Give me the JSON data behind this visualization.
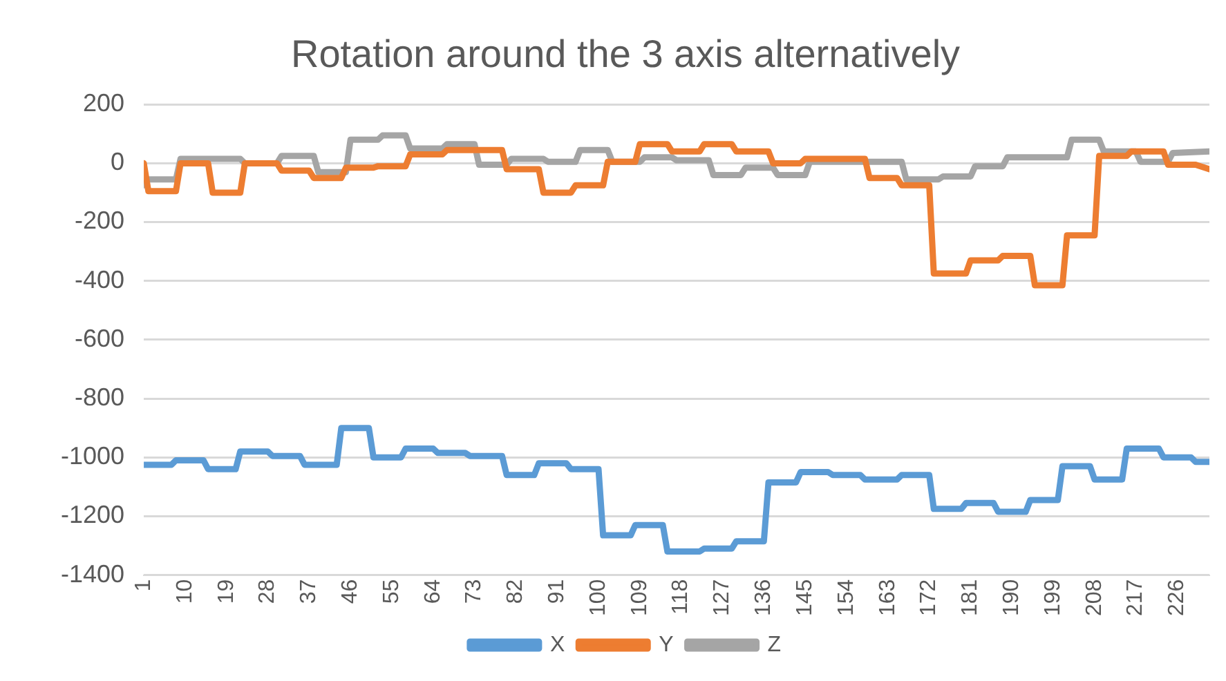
{
  "chart_data": {
    "type": "line",
    "title": "Rotation around the 3 axis alternatively",
    "xlim": [
      1,
      233
    ],
    "xticks": [
      1,
      10,
      19,
      28,
      37,
      46,
      55,
      64,
      73,
      82,
      91,
      100,
      109,
      118,
      127,
      136,
      145,
      154,
      163,
      172,
      181,
      190,
      199,
      208,
      217,
      226
    ],
    "ylim": [
      -1400,
      200
    ],
    "yticks": [
      -1400,
      -1200,
      -1000,
      -800,
      -600,
      -400,
      -200,
      0,
      200
    ],
    "grid": "y",
    "legend": "bottom",
    "marker": "none",
    "line_style": "solid",
    "series": [
      {
        "name": "X",
        "color": "#5b9bd5",
        "x": [
          1,
          7,
          8,
          14,
          15,
          21,
          22,
          28,
          29,
          35,
          36,
          43,
          44,
          50,
          51,
          57,
          58,
          64,
          65,
          71,
          72,
          79,
          80,
          86,
          87,
          93,
          94,
          100,
          101,
          107,
          108,
          114,
          115,
          122,
          123,
          129,
          130,
          136,
          137,
          143,
          144,
          150,
          151,
          157,
          158,
          165,
          166,
          172,
          173,
          179,
          180,
          186,
          187,
          193,
          194,
          200,
          201,
          207,
          208,
          214,
          215,
          222,
          223,
          229,
          230,
          233
        ],
        "values": [
          -1025,
          -1025,
          -1010,
          -1010,
          -1040,
          -1040,
          -980,
          -980,
          -995,
          -995,
          -1025,
          -1025,
          -900,
          -900,
          -1000,
          -1000,
          -970,
          -970,
          -985,
          -985,
          -995,
          -995,
          -1060,
          -1060,
          -1020,
          -1020,
          -1040,
          -1040,
          -1265,
          -1265,
          -1230,
          -1230,
          -1320,
          -1320,
          -1310,
          -1310,
          -1285,
          -1285,
          -1085,
          -1085,
          -1050,
          -1050,
          -1060,
          -1060,
          -1075,
          -1075,
          -1060,
          -1060,
          -1175,
          -1175,
          -1155,
          -1155,
          -1185,
          -1185,
          -1145,
          -1145,
          -1030,
          -1030,
          -1075,
          -1075,
          -970,
          -970,
          -1000,
          -1000,
          -1015,
          -1015
        ]
      },
      {
        "name": "Y",
        "color": "#ed7d31",
        "x": [
          1,
          2,
          8,
          9,
          15,
          16,
          22,
          23,
          30,
          31,
          37,
          38,
          44,
          45,
          51,
          52,
          58,
          59,
          66,
          67,
          79,
          80,
          87,
          88,
          94,
          95,
          101,
          102,
          108,
          109,
          115,
          116,
          122,
          123,
          129,
          130,
          137,
          138,
          144,
          145,
          158,
          159,
          165,
          166,
          172,
          173,
          180,
          181,
          187,
          188,
          194,
          195,
          201,
          202,
          208,
          209,
          215,
          216,
          223,
          224,
          230,
          233
        ],
        "values": [
          0,
          -95,
          -95,
          0,
          0,
          -100,
          -100,
          0,
          0,
          -25,
          -25,
          -50,
          -50,
          -15,
          -15,
          -10,
          -10,
          30,
          30,
          45,
          45,
          -20,
          -20,
          -100,
          -100,
          -75,
          -75,
          5,
          5,
          65,
          65,
          40,
          40,
          65,
          65,
          40,
          40,
          0,
          0,
          15,
          15,
          -50,
          -50,
          -75,
          -75,
          -375,
          -375,
          -330,
          -330,
          -315,
          -315,
          -415,
          -415,
          -245,
          -245,
          25,
          25,
          40,
          40,
          -5,
          -5,
          -20
        ]
      },
      {
        "name": "Z",
        "color": "#a5a5a5",
        "x": [
          1,
          2,
          8,
          9,
          22,
          23,
          30,
          31,
          38,
          39,
          45,
          46,
          52,
          53,
          58,
          59,
          66,
          67,
          73,
          74,
          80,
          81,
          88,
          89,
          95,
          96,
          102,
          103,
          109,
          110,
          116,
          117,
          124,
          125,
          131,
          132,
          138,
          139,
          145,
          146,
          166,
          167,
          174,
          175,
          181,
          182,
          188,
          189,
          202,
          203,
          209,
          210,
          217,
          218,
          224,
          225,
          233
        ],
        "values": [
          -75,
          -55,
          -55,
          15,
          15,
          0,
          0,
          25,
          25,
          -30,
          -30,
          80,
          80,
          95,
          95,
          50,
          50,
          65,
          65,
          -5,
          -5,
          15,
          15,
          5,
          5,
          45,
          45,
          5,
          5,
          20,
          20,
          10,
          10,
          -40,
          -40,
          -15,
          -15,
          -40,
          -40,
          5,
          5,
          -55,
          -55,
          -45,
          -45,
          -10,
          -10,
          20,
          20,
          80,
          80,
          40,
          40,
          5,
          5,
          35,
          40
        ]
      }
    ]
  }
}
